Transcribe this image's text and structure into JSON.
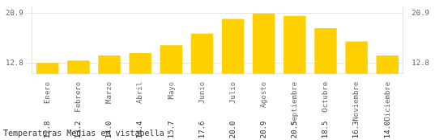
{
  "chart_data": {
    "type": "bar",
    "title": "Temperaturas Medias en vistabella",
    "categories": [
      "Enero",
      "Febrero",
      "Marzo",
      "Abril",
      "Mayo",
      "Junio",
      "Julio",
      "Agosto",
      "Septiembre",
      "Octubre",
      "Noviembre",
      "Diciembre"
    ],
    "values": [
      12.8,
      13.2,
      14.0,
      14.4,
      15.7,
      17.6,
      20.0,
      20.9,
      20.5,
      18.5,
      16.3,
      14.0
    ],
    "value_labels": [
      "12.8",
      "13.2",
      "14.0",
      "14.4",
      "15.7",
      "17.6",
      "20.0",
      "20.9",
      "20.5",
      "18.5",
      "16.3",
      "14.0"
    ],
    "data_labels": true,
    "color": "#FFD000",
    "ylim": [
      11.0,
      22.0
    ],
    "yticks": [
      12.8,
      20.9
    ],
    "y2lim": [
      11.0,
      22.0
    ],
    "y2ticks": [
      12.8,
      20.9
    ],
    "grid": true
  }
}
